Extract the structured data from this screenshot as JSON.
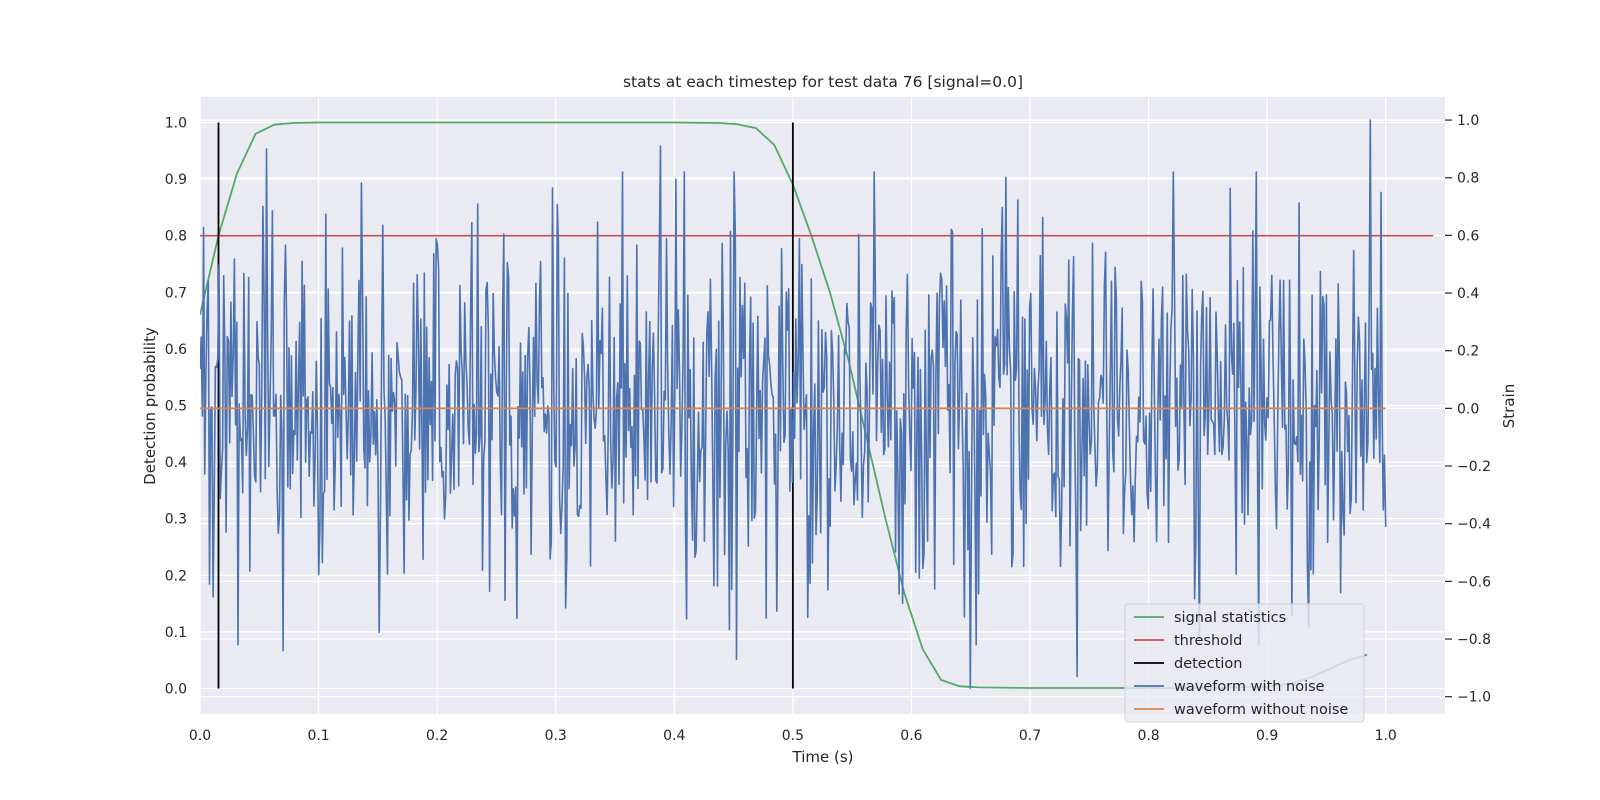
{
  "chart_data": {
    "type": "line",
    "title": "stats at each timestep for test data 76 [signal=0.0]",
    "xlabel": "Time (s)",
    "ylabel_left": "Detection probability",
    "ylabel_right": "Strain",
    "xlim": [
      0.0,
      1.05
    ],
    "ylim_left": [
      -0.045,
      1.045
    ],
    "ylim_right": [
      -1.06,
      1.08
    ],
    "x_ticks": [
      0.0,
      0.1,
      0.2,
      0.3,
      0.4,
      0.5,
      0.6,
      0.7,
      0.8,
      0.9,
      1.0
    ],
    "x_tick_labels": [
      "0.0",
      "0.1",
      "0.2",
      "0.3",
      "0.4",
      "0.5",
      "0.6",
      "0.7",
      "0.8",
      "0.9",
      "1.0"
    ],
    "y_left_ticks": [
      0.0,
      0.1,
      0.2,
      0.3,
      0.4,
      0.5,
      0.6,
      0.7,
      0.8,
      0.9,
      1.0
    ],
    "y_left_tick_labels": [
      "0.0",
      "0.1",
      "0.2",
      "0.3",
      "0.4",
      "0.5",
      "0.6",
      "0.7",
      "0.8",
      "0.9",
      "1.0"
    ],
    "y_right_ticks": [
      -1.0,
      -0.8,
      -0.6,
      -0.4,
      -0.2,
      0.0,
      0.2,
      0.4,
      0.6,
      0.8,
      1.0
    ],
    "y_right_tick_labels": [
      "−1.0",
      "−0.8",
      "−0.6",
      "−0.4",
      "−0.2",
      "0.0",
      "0.2",
      "0.4",
      "0.6",
      "0.8",
      "1.0"
    ],
    "grid": true,
    "legend_position": "lower-right",
    "colors": {
      "signal_statistics": "#55a868",
      "threshold": "#c44e52",
      "detection": "#000000",
      "waveform_with_noise": "#4c72b0",
      "waveform_without_noise": "#dd8452",
      "plot_background": "#eaeaf2",
      "grid": "#ffffff"
    },
    "legend": [
      {
        "label": "signal statistics",
        "series": "signal_statistics"
      },
      {
        "label": "threshold",
        "series": "threshold"
      },
      {
        "label": "detection",
        "series": "detection"
      },
      {
        "label": "waveform with noise",
        "series": "waveform_with_noise"
      },
      {
        "label": "waveform without noise",
        "series": "waveform_without_noise"
      }
    ],
    "signal_statistics": {
      "axis": "left",
      "x": [
        0.0,
        0.0156,
        0.0312,
        0.0469,
        0.0625,
        0.0781,
        0.1,
        0.2,
        0.3,
        0.4,
        0.4375,
        0.4531,
        0.4688,
        0.4844,
        0.5,
        0.5156,
        0.5312,
        0.5469,
        0.5625,
        0.5781,
        0.5938,
        0.6094,
        0.625,
        0.6406,
        0.6562,
        0.7,
        0.8,
        0.8594,
        0.875,
        0.9,
        0.9219,
        0.9375,
        0.9531,
        0.9688,
        0.9844
      ],
      "y": [
        0.66,
        0.8,
        0.91,
        0.98,
        0.996,
        0.999,
        1.0,
        1.0,
        1.0,
        1.0,
        0.999,
        0.997,
        0.99,
        0.96,
        0.89,
        0.8,
        0.7,
        0.58,
        0.44,
        0.3,
        0.17,
        0.07,
        0.015,
        0.004,
        0.002,
        0.001,
        0.001,
        0.001,
        0.002,
        0.003,
        0.01,
        0.02,
        0.035,
        0.05,
        0.06
      ]
    },
    "threshold": {
      "axis": "left",
      "x": [
        0.0,
        1.04
      ],
      "y": [
        0.8,
        0.8
      ]
    },
    "detection": {
      "axis": "left",
      "x": [
        0.0156,
        0.5
      ],
      "ymin": 0.0,
      "ymax": 1.0
    },
    "waveform_without_noise": {
      "axis": "right",
      "x": [
        0.0,
        1.0
      ],
      "y": [
        0.0,
        0.0
      ]
    },
    "waveform_with_noise": {
      "axis": "right",
      "n_points": 1000,
      "x_range": [
        0.0,
        1.0
      ],
      "approx_range": [
        -0.97,
        1.0
      ],
      "peaks": [
        {
          "x": 0.056,
          "y": 0.9
        },
        {
          "x": 0.388,
          "y": 0.91
        },
        {
          "x": 0.987,
          "y": 1.0
        },
        {
          "x": 0.07,
          "y": -0.84
        },
        {
          "x": 0.452,
          "y": -0.87
        },
        {
          "x": 0.65,
          "y": -0.97
        },
        {
          "x": 0.74,
          "y": -0.93
        }
      ]
    }
  }
}
